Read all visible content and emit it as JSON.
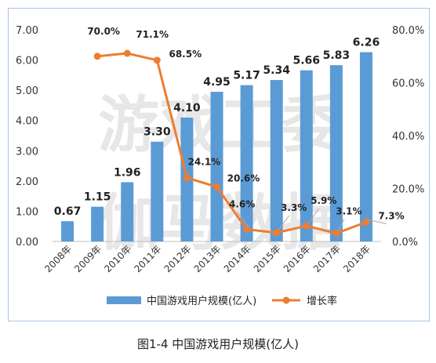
{
  "caption": "图1-4  中国游戏用户规模(亿人)",
  "watermark": [
    "游戏工委",
    "伽马数据"
  ],
  "colors": {
    "bar": "#5b9bd5",
    "line": "#ed7d31",
    "frame": "#a9c6e0"
  },
  "legend": {
    "bar_label": "中国游戏用户规模(亿人)",
    "line_label": "增长率",
    "placement": "bottom"
  },
  "chart_data": {
    "type": "bar",
    "title": "",
    "categories": [
      "2008年",
      "2009年",
      "2010年",
      "2011年",
      "2012年",
      "2013年",
      "2014年",
      "2015年",
      "2016年",
      "2017年",
      "2018年"
    ],
    "y_left": {
      "min": 0,
      "max": 7,
      "step": 1,
      "tick_labels": [
        "0.00",
        "1.00",
        "2.00",
        "3.00",
        "4.00",
        "5.00",
        "6.00",
        "7.00"
      ]
    },
    "y_right": {
      "min": 0,
      "max": 80,
      "step": 20,
      "tick_labels": [
        "0.0%",
        "20.0%",
        "40.0%",
        "60.0%",
        "80.0%"
      ]
    },
    "grid": false,
    "series": [
      {
        "name": "中国游戏用户规模(亿人)",
        "type": "bar",
        "axis": "left",
        "values": [
          0.67,
          1.15,
          1.96,
          3.3,
          4.1,
          4.95,
          5.17,
          5.34,
          5.66,
          5.83,
          6.26
        ],
        "labels": [
          "0.67",
          "1.15",
          "1.96",
          "3.30",
          "4.10",
          "4.95",
          "5.17",
          "5.34",
          "5.66",
          "5.83",
          "6.26"
        ]
      },
      {
        "name": "增长率",
        "type": "line",
        "axis": "right",
        "values": [
          null,
          70.0,
          71.1,
          68.5,
          24.1,
          20.6,
          4.6,
          3.3,
          5.9,
          3.1,
          7.3
        ],
        "labels": [
          null,
          "70.0%",
          "71.1%",
          "68.5%",
          "24.1%",
          "20.6%",
          "4.6%",
          "3.3%",
          "5.9%",
          "3.1%",
          "7.3%"
        ]
      }
    ]
  }
}
